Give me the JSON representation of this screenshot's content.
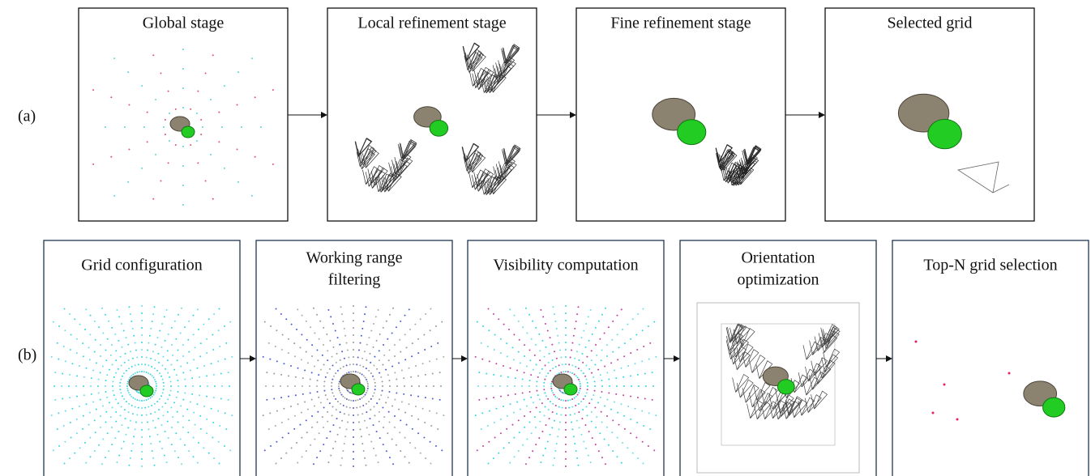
{
  "row_labels": [
    "(a)",
    "(b)"
  ],
  "row_a": {
    "panels": [
      {
        "title": "Global stage"
      },
      {
        "title": "Local refinement stage"
      },
      {
        "title": "Fine refinement stage"
      },
      {
        "title": "Selected grid"
      }
    ]
  },
  "row_b": {
    "panels": [
      {
        "title_lines": [
          "Grid configuration"
        ]
      },
      {
        "title_lines": [
          "Working range",
          "filtering"
        ]
      },
      {
        "title_lines": [
          "Visibility computation"
        ]
      },
      {
        "title_lines": [
          "Orientation",
          "optimization"
        ]
      },
      {
        "title_lines": [
          "Top-N grid selection"
        ]
      }
    ]
  }
}
